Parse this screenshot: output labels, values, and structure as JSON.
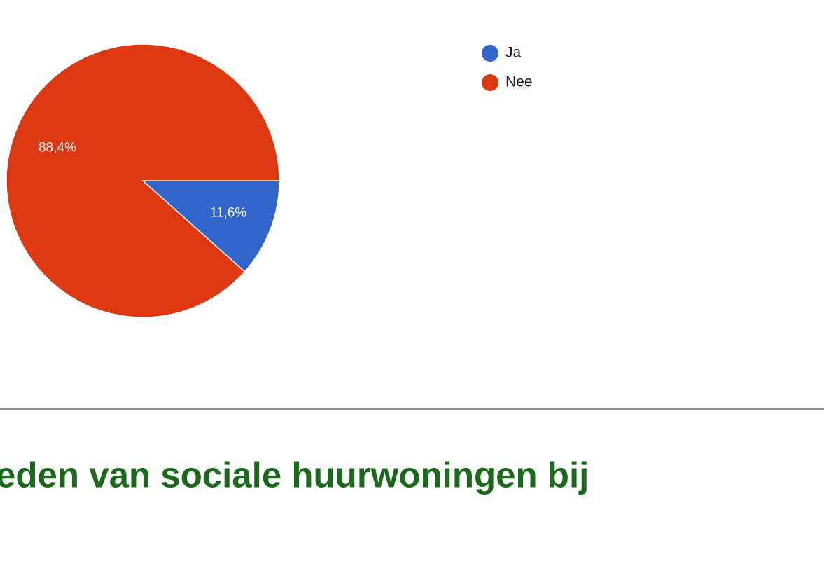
{
  "chart_data": {
    "type": "pie",
    "categories": [
      "Ja",
      "Nee"
    ],
    "values": [
      11.6,
      88.4
    ],
    "value_labels": [
      "11,6%",
      "88,4%"
    ],
    "colors": [
      "#3366cc",
      "#dc3912"
    ]
  },
  "heading": "eden van sociale huurwoningen bij"
}
